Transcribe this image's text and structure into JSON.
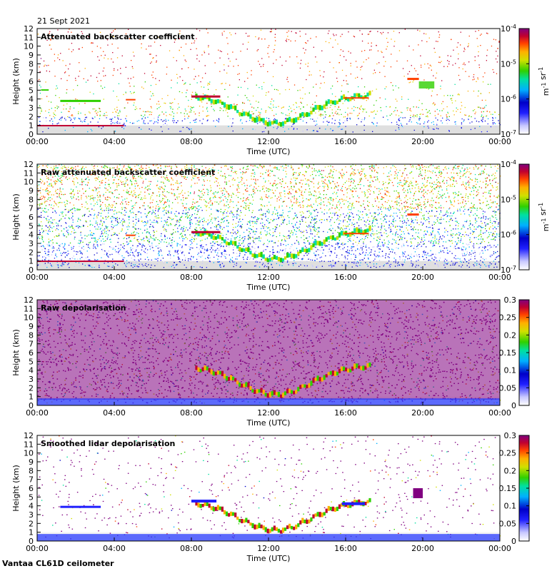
{
  "date_label": "21 Sept 2021",
  "footer_label": "Vantaa CL61D ceilometer",
  "colors": {
    "background_noise": "#dcdcdc",
    "axis": "#000000"
  },
  "chart_data": [
    {
      "type": "heatmap",
      "title": "Attenuated backscatter coefficient",
      "xlabel": "Time (UTC)",
      "ylabel": "Height (km)",
      "x_ticks": [
        "00:00",
        "04:00",
        "08:00",
        "12:00",
        "16:00",
        "20:00",
        "00:00"
      ],
      "y_ticks": [
        "0",
        "1",
        "2",
        "3",
        "4",
        "5",
        "6",
        "7",
        "8",
        "9",
        "10",
        "11",
        "12"
      ],
      "ylim": [
        0,
        12
      ],
      "xlim_hours": [
        0,
        24
      ],
      "colorbar": {
        "scale": "log",
        "ticks": [
          "10-7",
          "10-6",
          "10-5",
          "10-4"
        ],
        "unit_label": "m-1 sr-1",
        "range": [
          1e-07,
          0.0001
        ]
      }
    },
    {
      "type": "heatmap",
      "title": "Raw attenuated backscatter coefficient",
      "xlabel": "Time (UTC)",
      "ylabel": "Height (km)",
      "x_ticks": [
        "00:00",
        "04:00",
        "08:00",
        "12:00",
        "16:00",
        "20:00",
        "00:00"
      ],
      "y_ticks": [
        "0",
        "1",
        "2",
        "3",
        "4",
        "5",
        "6",
        "7",
        "8",
        "9",
        "10",
        "11",
        "12"
      ],
      "ylim": [
        0,
        12
      ],
      "xlim_hours": [
        0,
        24
      ],
      "colorbar": {
        "scale": "log",
        "ticks": [
          "10-7",
          "10-6",
          "10-5",
          "10-4"
        ],
        "unit_label": "m-1 sr-1",
        "range": [
          1e-07,
          0.0001
        ]
      }
    },
    {
      "type": "heatmap",
      "title": "Raw depolarisation",
      "xlabel": "Time (UTC)",
      "ylabel": "Height (km)",
      "x_ticks": [
        "00:00",
        "04:00",
        "08:00",
        "12:00",
        "16:00",
        "20:00",
        "00:00"
      ],
      "y_ticks": [
        "0",
        "1",
        "2",
        "3",
        "4",
        "5",
        "6",
        "7",
        "8",
        "9",
        "10",
        "11",
        "12"
      ],
      "ylim": [
        0,
        12
      ],
      "xlim_hours": [
        0,
        24
      ],
      "colorbar": {
        "scale": "linear",
        "ticks": [
          "0",
          "0.05",
          "0.1",
          "0.15",
          "0.2",
          "0.25",
          "0.3"
        ],
        "unit_label": "",
        "range": [
          0,
          0.3
        ]
      }
    },
    {
      "type": "heatmap",
      "title": "Smoothed lidar depolarisation",
      "xlabel": "Time (UTC)",
      "ylabel": "Height (km)",
      "x_ticks": [
        "00:00",
        "04:00",
        "08:00",
        "12:00",
        "16:00",
        "20:00",
        "00:00"
      ],
      "y_ticks": [
        "0",
        "1",
        "2",
        "3",
        "4",
        "5",
        "6",
        "7",
        "8",
        "9",
        "10",
        "11",
        "12"
      ],
      "ylim": [
        0,
        12
      ],
      "xlim_hours": [
        0,
        24
      ],
      "colorbar": {
        "scale": "linear",
        "ticks": [
          "0",
          "0.05",
          "0.1",
          "0.15",
          "0.2",
          "0.25",
          "0.3"
        ],
        "unit_label": "",
        "range": [
          0,
          0.3
        ]
      }
    }
  ]
}
